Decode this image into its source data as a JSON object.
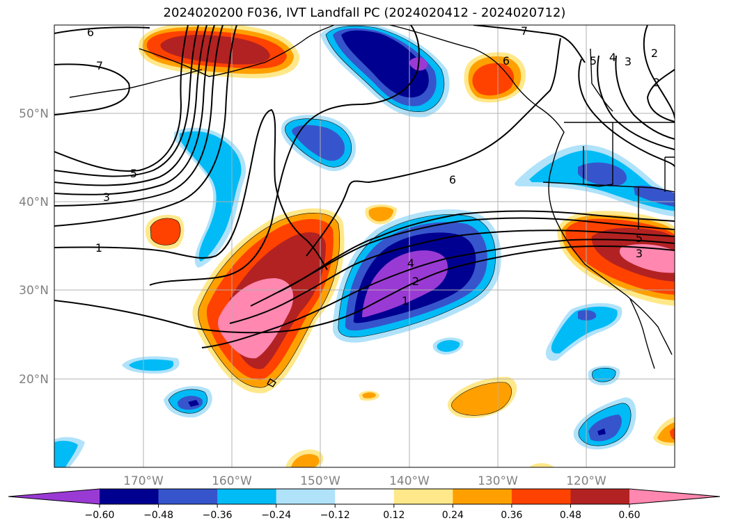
{
  "title": "2024020200 F036, IVT Landfall PC (2024020412 - 2024020712)",
  "map": {
    "lon_ticks": [
      "170°W",
      "160°W",
      "150°W",
      "140°W",
      "130°W",
      "120°W"
    ],
    "lat_ticks": [
      "50°N",
      "40°N",
      "30°N",
      "20°N"
    ],
    "contour_labels": [
      "6",
      "7",
      "5",
      "3",
      "1",
      "6",
      "4",
      "2",
      "1",
      "7",
      "6",
      "5",
      "4",
      "3",
      "2",
      "2",
      "5",
      "3"
    ]
  },
  "colorbar": {
    "colors": [
      "#9a3ad4",
      "#000090",
      "#3655cc",
      "#00bbf5",
      "#b0e2fa",
      "#ffffff",
      "#ffe88a",
      "#ffa000",
      "#ff4200",
      "#b22222",
      "#ff87b0"
    ],
    "ticks": [
      "−0.60",
      "−0.48",
      "−0.36",
      "−0.24",
      "−0.12",
      "0.12",
      "0.24",
      "0.36",
      "0.48",
      "0.60"
    ]
  }
}
